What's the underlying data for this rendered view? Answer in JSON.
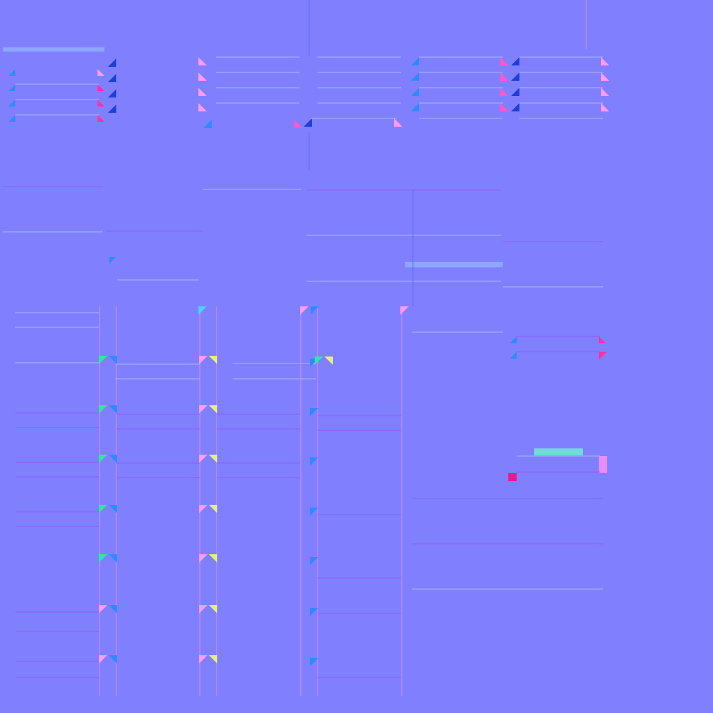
{
  "background": "#8080ff",
  "palette": {
    "edge_light": "#a7b8ff",
    "edge_dark": "#5a6dff",
    "edge_pink": "#d88cff",
    "edge_purple": "#8a5cff",
    "tri_blue": "#2e8bff",
    "tri_dark_blue": "#1f3fd6",
    "tri_pink": "#ff59c8",
    "tri_magenta": "#ff2fa8",
    "tri_light_pink": "#ff9af2",
    "tri_green": "#2fe89a",
    "tri_yellow": "#e5f07a",
    "tri_cyan": "#49d4ff",
    "accent_cyan": "#6fdcd6",
    "accent_pink": "#e98cff",
    "accent_magenta": "#e0208a",
    "band_light": "#8da7ff"
  }
}
